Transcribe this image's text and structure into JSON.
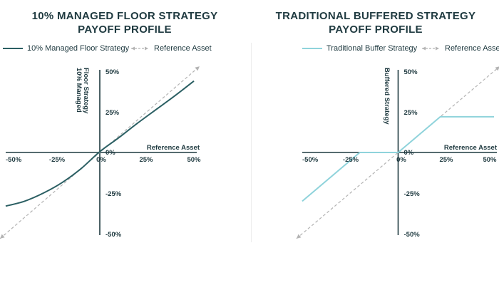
{
  "chart_data": [
    {
      "type": "line",
      "title_lines": [
        "10% MANAGED FLOOR STRATEGY",
        "PAYOFF PROFILE"
      ],
      "xlabel": "Reference Asset",
      "ylabel_lines": [
        "10% Managed",
        "Floor Strategy"
      ],
      "xlim": [
        -50,
        50
      ],
      "ylim": [
        -50,
        50
      ],
      "x_ticks": [
        "-50%",
        "-25%",
        "0%",
        "25%",
        "50%"
      ],
      "y_ticks": [
        "50%",
        "25%",
        "0%",
        "-25%",
        "-50%"
      ],
      "legend": "top",
      "series": [
        {
          "name": "10% Managed Floor Strategy",
          "color": "#2b5f63",
          "style": "solid",
          "x": [
            -50,
            -40,
            -30,
            -20,
            -10,
            0,
            10,
            20,
            30,
            40,
            50
          ],
          "y": [
            -33,
            -30,
            -25,
            -18.5,
            -10,
            0.5,
            9,
            18,
            26.5,
            35,
            44
          ]
        },
        {
          "name": "Reference Asset",
          "color": "#b3b3b3",
          "style": "dashed",
          "x": [
            -53,
            53
          ],
          "y": [
            -53,
            53
          ]
        }
      ]
    },
    {
      "type": "line",
      "title_lines": [
        "TRADITIONAL BUFFERED STRATEGY",
        "PAYOFF PROFILE"
      ],
      "xlabel": "Reference Asset",
      "ylabel_lines": [
        "Buffered Strategy"
      ],
      "xlim": [
        -50,
        50
      ],
      "ylim": [
        -50,
        50
      ],
      "x_ticks": [
        "-50%",
        "-25%",
        "0%",
        "25%",
        "50%"
      ],
      "y_ticks": [
        "50%",
        "25%",
        "0%",
        "-25%",
        "-50%"
      ],
      "legend": "top",
      "series": [
        {
          "name": "Traditional Buffer Strategy",
          "color": "#8fd3db",
          "style": "solid",
          "x": [
            -50,
            -20,
            0,
            22,
            50
          ],
          "y": [
            -30,
            0,
            0,
            22,
            22
          ]
        },
        {
          "name": "Reference Asset",
          "color": "#b3b3b3",
          "style": "dashed",
          "x": [
            -53,
            53
          ],
          "y": [
            -53,
            53
          ]
        }
      ]
    }
  ]
}
